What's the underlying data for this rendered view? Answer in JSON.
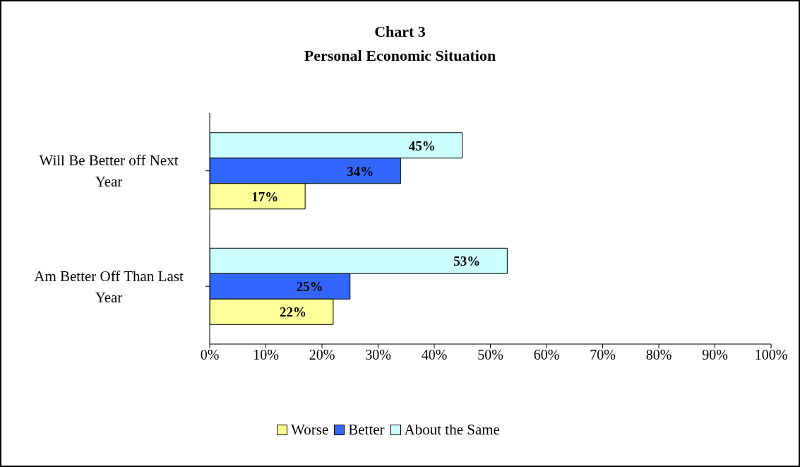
{
  "chart_data": {
    "type": "bar",
    "orientation": "horizontal",
    "title": "Chart 3",
    "subtitle": "Personal Economic Situation",
    "categories": [
      "Will Be Better off Next Year",
      "Am Better Off Than Last Year"
    ],
    "series": [
      {
        "name": "Worse",
        "color": "#ffff99",
        "values": [
          17,
          22
        ],
        "value_labels": [
          "17%",
          "22%"
        ]
      },
      {
        "name": "Better",
        "color": "#3366ff",
        "values": [
          34,
          25
        ],
        "value_labels": [
          "34%",
          "25%"
        ]
      },
      {
        "name": "About the Same",
        "color": "#ccffff",
        "values": [
          45,
          53
        ],
        "value_labels": [
          "45%",
          "53%"
        ]
      }
    ],
    "xlim": [
      0,
      100
    ],
    "xticks": [
      {
        "value": 0,
        "label": "0%"
      },
      {
        "value": 10,
        "label": "10%"
      },
      {
        "value": 20,
        "label": "20%"
      },
      {
        "value": 30,
        "label": "30%"
      },
      {
        "value": 40,
        "label": "40%"
      },
      {
        "value": 50,
        "label": "50%"
      },
      {
        "value": 60,
        "label": "60%"
      },
      {
        "value": 70,
        "label": "70%"
      },
      {
        "value": 80,
        "label": "80%"
      },
      {
        "value": 90,
        "label": "90%"
      },
      {
        "value": 100,
        "label": "100%"
      }
    ],
    "grid": false,
    "legend": "bottom"
  }
}
